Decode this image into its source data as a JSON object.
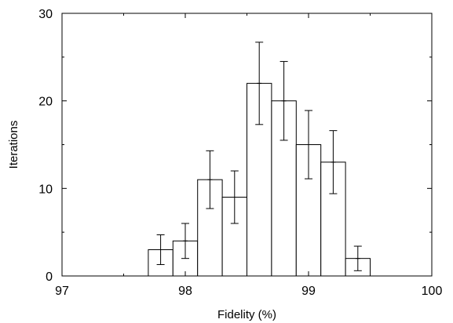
{
  "chart_data": {
    "type": "bar",
    "title": "",
    "xlabel": "Fidelity (%)",
    "ylabel": "Iterations",
    "xlim": [
      97,
      100
    ],
    "ylim": [
      0,
      30
    ],
    "x_ticks": [
      97,
      98,
      99,
      100
    ],
    "y_ticks": [
      0,
      10,
      20,
      30
    ],
    "grid": false,
    "bin_width": 0.2,
    "bins": [
      {
        "x": 97.8,
        "value": 3,
        "err_low": 1.3,
        "err_high": 4.7
      },
      {
        "x": 98.0,
        "value": 4,
        "err_low": 2.0,
        "err_high": 6.0
      },
      {
        "x": 98.2,
        "value": 11,
        "err_low": 7.7,
        "err_high": 14.3
      },
      {
        "x": 98.4,
        "value": 9,
        "err_low": 6.0,
        "err_high": 12.0
      },
      {
        "x": 98.6,
        "value": 22,
        "err_low": 17.3,
        "err_high": 26.7
      },
      {
        "x": 98.8,
        "value": 20,
        "err_low": 15.5,
        "err_high": 24.5
      },
      {
        "x": 99.0,
        "value": 15,
        "err_low": 11.1,
        "err_high": 18.9
      },
      {
        "x": 99.2,
        "value": 13,
        "err_low": 9.4,
        "err_high": 16.6
      },
      {
        "x": 99.4,
        "value": 2,
        "err_low": 0.6,
        "err_high": 3.4
      }
    ]
  }
}
